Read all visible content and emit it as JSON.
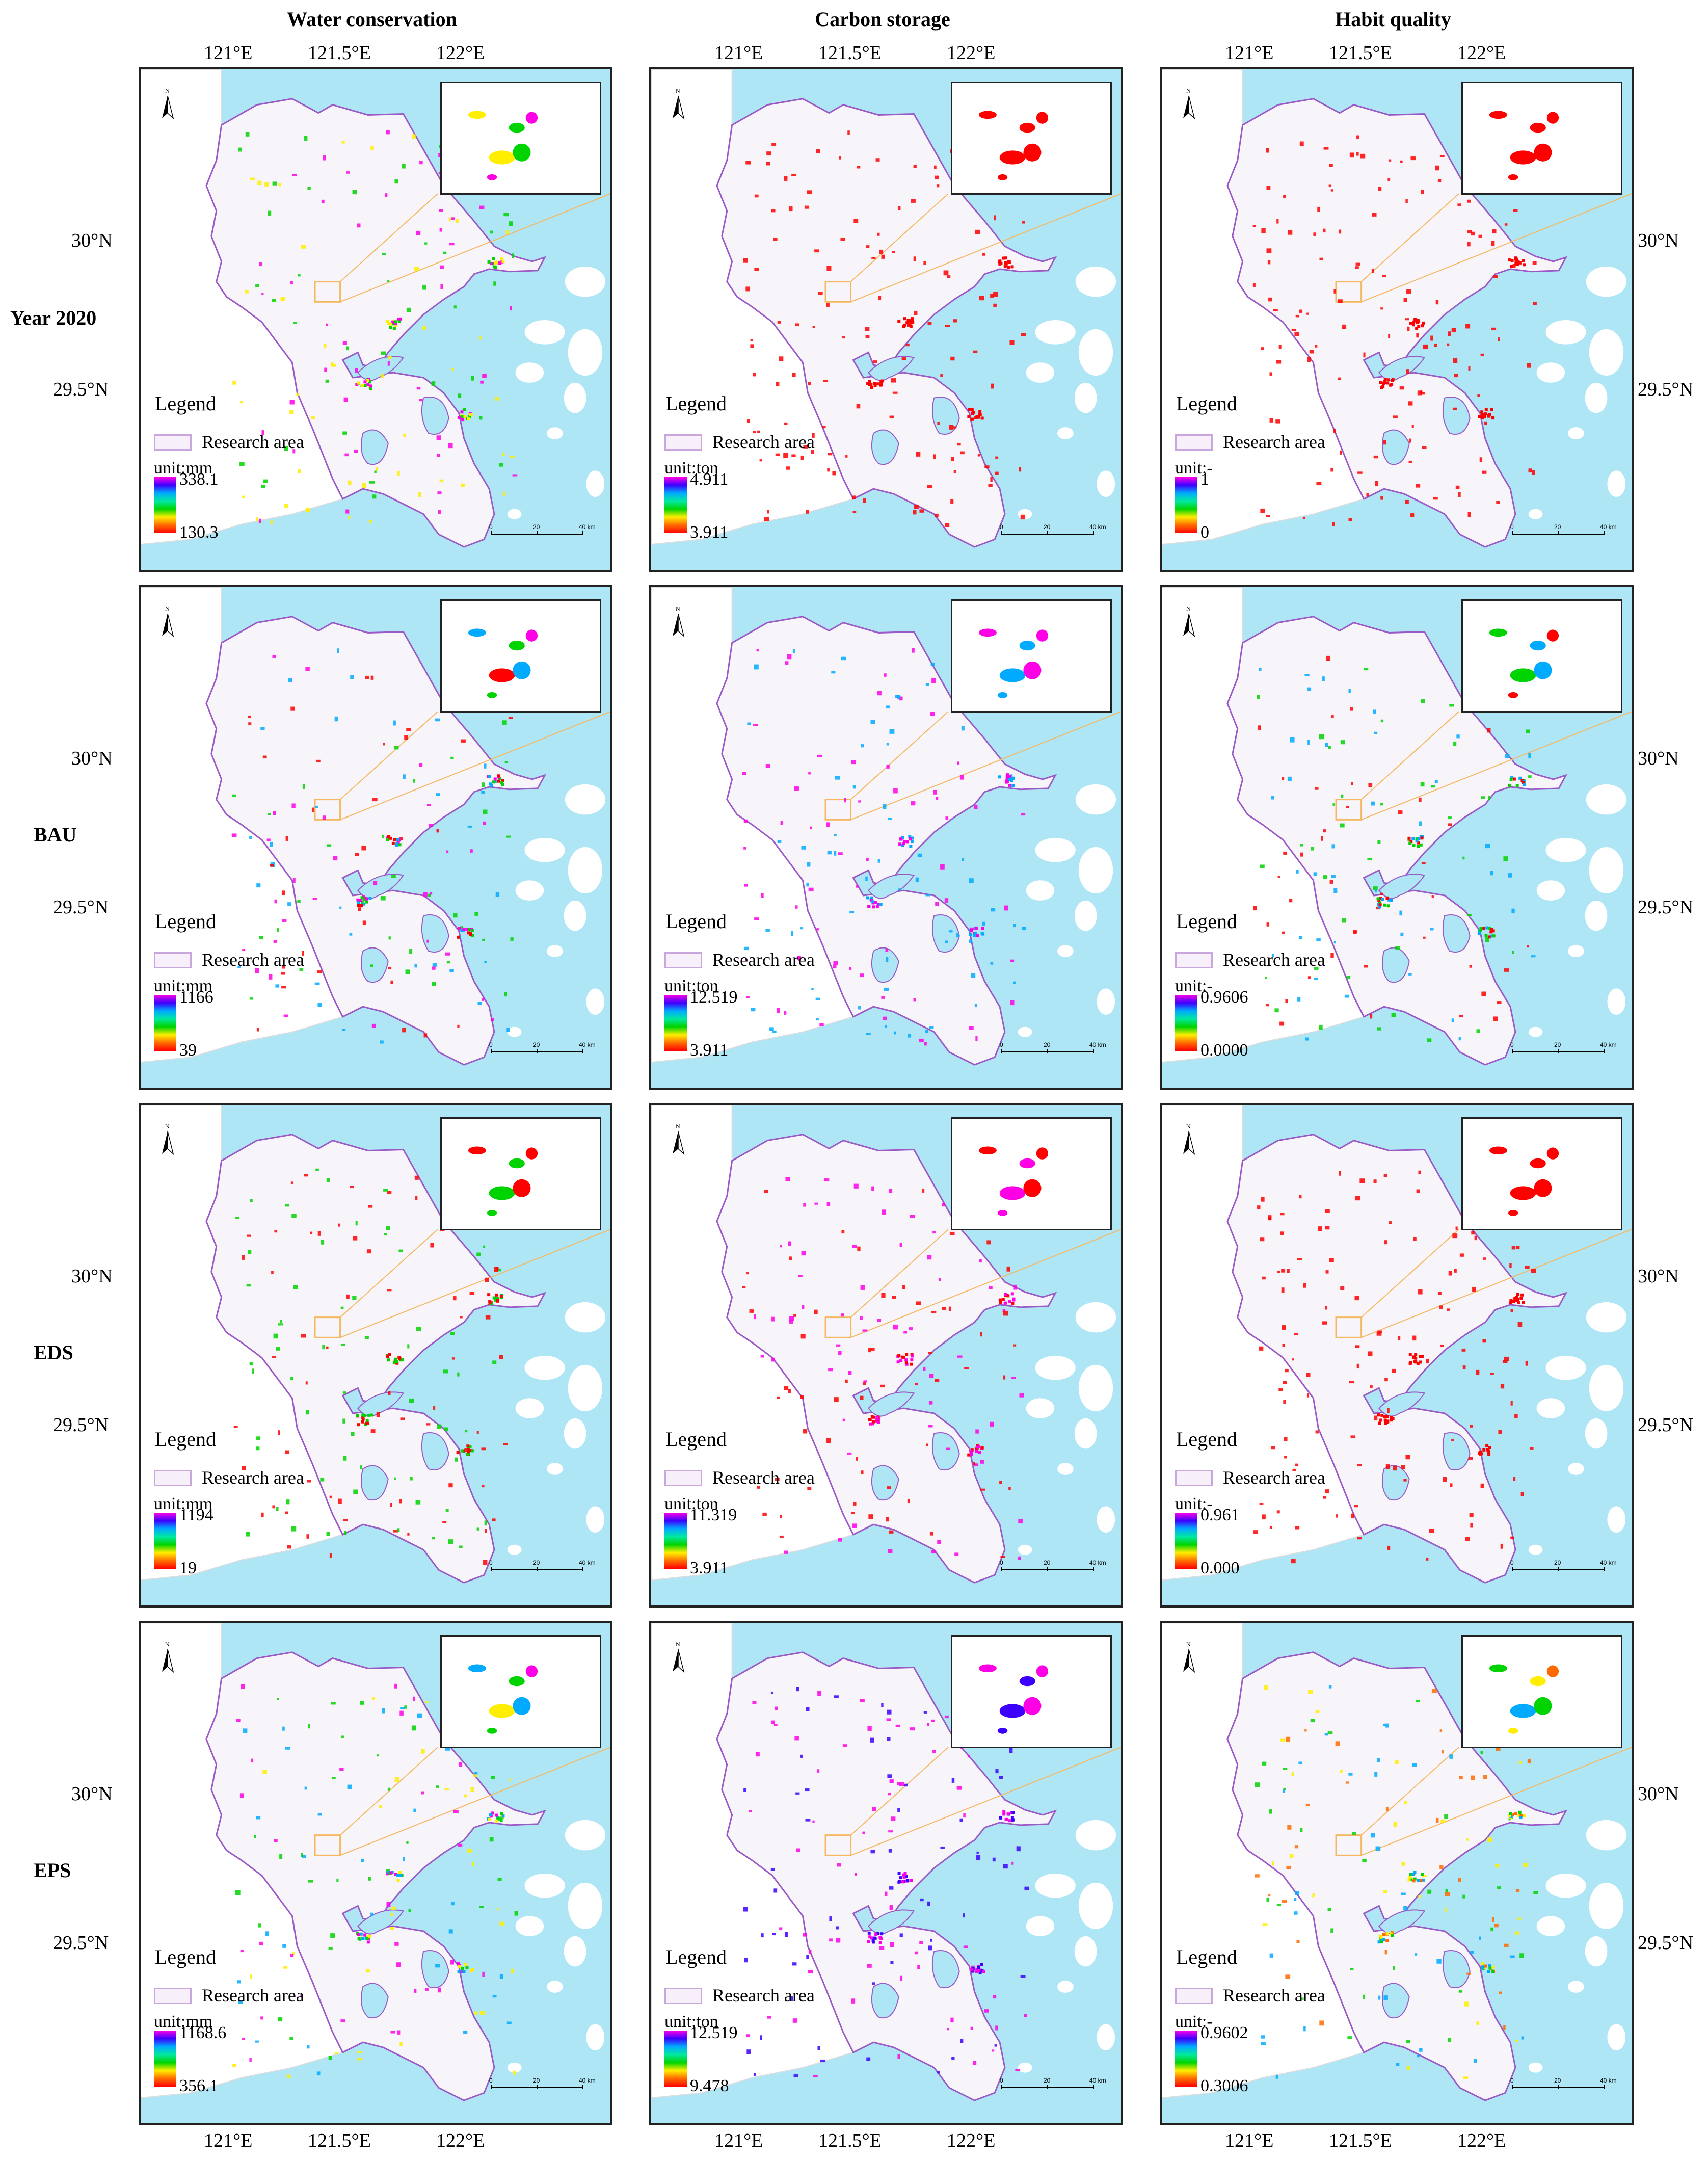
{
  "columns": [
    {
      "title": "Water conservation"
    },
    {
      "title": "Carbon storage"
    },
    {
      "title": "Habit quality"
    }
  ],
  "rows": [
    {
      "title": "Year 2020"
    },
    {
      "title": "BAU"
    },
    {
      "title": "EDS"
    },
    {
      "title": "EPS"
    }
  ],
  "axes": {
    "lon_labels": [
      "121°E",
      "121.5°E",
      "122°E"
    ],
    "lat_labels": [
      "30°N",
      "29.5°N"
    ]
  },
  "common": {
    "legend_title": "Legend",
    "research_area": "Research area",
    "north": "N",
    "scale": [
      "0",
      "20",
      "40 km"
    ]
  },
  "panels": [
    [
      {
        "unit": "unit:mm",
        "max": "338.1",
        "min": "130.3",
        "palette": [
          "#ffee00",
          "#00d400",
          "#ff00e6"
        ]
      },
      {
        "unit": "unit:ton",
        "max": "4.911",
        "min": "3.911",
        "palette": [
          "#ff0000"
        ]
      },
      {
        "unit": "unit:-",
        "max": "1",
        "min": "0",
        "palette": [
          "#ff0000"
        ]
      }
    ],
    [
      {
        "unit": "unit:mm",
        "max": "1166",
        "min": "39",
        "palette": [
          "#00aaff",
          "#00d400",
          "#ff00e6",
          "#ff0000"
        ]
      },
      {
        "unit": "unit:ton",
        "max": "12.519",
        "min": "3.911",
        "palette": [
          "#ff00e6",
          "#00aaff"
        ]
      },
      {
        "unit": "unit:-",
        "max": "0.9606",
        "min": "0.0000",
        "palette": [
          "#00d400",
          "#00aaff",
          "#ff0000"
        ]
      }
    ],
    [
      {
        "unit": "unit:mm",
        "max": "1194",
        "min": "19",
        "palette": [
          "#ff0000",
          "#00d400"
        ]
      },
      {
        "unit": "unit:ton",
        "max": "11.319",
        "min": "3.911",
        "palette": [
          "#ff0000",
          "#ff00e6"
        ]
      },
      {
        "unit": "unit:-",
        "max": "0.961",
        "min": "0.000",
        "palette": [
          "#ff0000"
        ]
      }
    ],
    [
      {
        "unit": "unit:mm",
        "max": "1168.6",
        "min": "356.1",
        "palette": [
          "#00aaff",
          "#00d400",
          "#ff00e6",
          "#ffee00"
        ]
      },
      {
        "unit": "unit:ton",
        "max": "12.519",
        "min": "9.478",
        "palette": [
          "#ff00e6",
          "#3c00ff"
        ]
      },
      {
        "unit": "unit:-",
        "max": "0.9602",
        "min": "0.3006",
        "palette": [
          "#00d400",
          "#ffee00",
          "#ff6a00",
          "#00aaff"
        ]
      }
    ]
  ],
  "colors": {
    "sea": "#aee6f6",
    "land": "#f7f4fa",
    "boundary": "#9b59c6",
    "inset_link": "#f5b860"
  }
}
